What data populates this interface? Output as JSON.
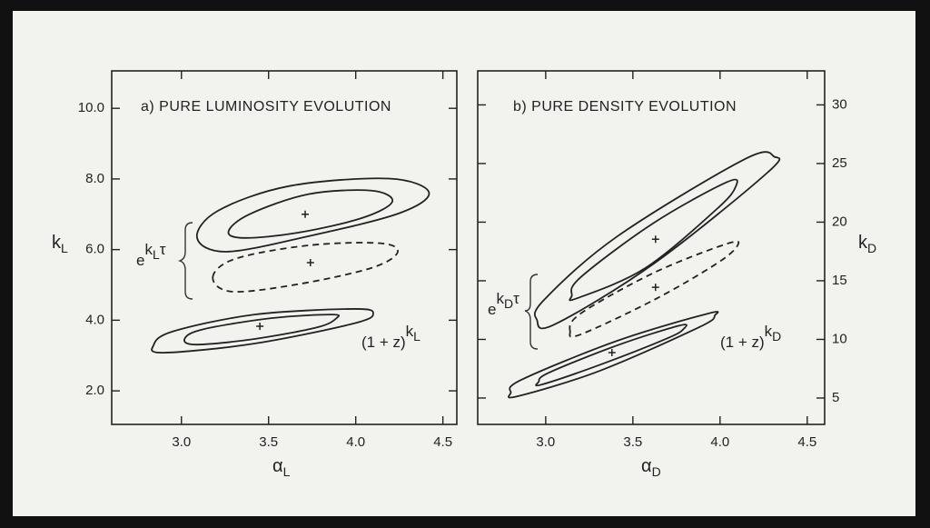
{
  "chart_data": [
    {
      "type": "contour",
      "title": "a) PURE LUMINOSITY EVOLUTION",
      "xlabel": [
        "α",
        "L"
      ],
      "ylabel": [
        "k",
        "L"
      ],
      "yaxis_side": "left",
      "xlim": [
        2.6,
        4.58
      ],
      "ylim": [
        1.05,
        11.06
      ],
      "xticks": [
        {
          "value": 3,
          "label": "3.0"
        },
        {
          "value": 3.5,
          "label": "3.5"
        },
        {
          "value": 4,
          "label": "4.0"
        },
        {
          "value": 4.5,
          "label": "4.5"
        }
      ],
      "yticks": [
        {
          "value": 2,
          "label": "2.0"
        },
        {
          "value": 4,
          "label": "4.0"
        },
        {
          "value": 6,
          "label": "6.0"
        },
        {
          "value": 8,
          "label": "8.0"
        },
        {
          "value": 10,
          "label": "10.0"
        }
      ],
      "color": "#222",
      "series": [
        {
          "style": "solid",
          "x": [
            3.09,
            3.21,
            3.62,
            4.19,
            4.42,
            4.25,
            3.73,
            3.26
          ],
          "y": [
            6.33,
            7.1,
            7.8,
            8.01,
            7.62,
            7.03,
            6.38,
            5.94
          ]
        },
        {
          "style": "solid",
          "x": [
            3.27,
            3.39,
            3.73,
            4.09,
            4.21,
            4.04,
            3.67,
            3.36
          ],
          "y": [
            6.51,
            7.0,
            7.57,
            7.67,
            7.36,
            6.9,
            6.48,
            6.33
          ]
        },
        {
          "style": "dashed",
          "x": [
            3.18,
            3.31,
            3.73,
            4.14,
            4.24,
            4.09,
            3.67,
            3.29
          ],
          "y": [
            5.22,
            5.74,
            6.12,
            6.18,
            5.92,
            5.48,
            5.02,
            4.81
          ]
        },
        {
          "style": "solid",
          "x": [
            2.84,
            2.95,
            3.42,
            3.99,
            4.1,
            3.99,
            3.42,
            2.9
          ],
          "y": [
            3.29,
            3.68,
            4.16,
            4.32,
            4.19,
            3.91,
            3.34,
            3.08
          ]
        },
        {
          "style": "solid",
          "x": [
            3.02,
            3.13,
            3.52,
            3.86,
            3.89,
            3.78,
            3.42,
            3.08
          ],
          "y": [
            3.49,
            3.75,
            4.06,
            4.16,
            4.06,
            3.8,
            3.47,
            3.31
          ]
        }
      ],
      "points": {
        "x": [
          3.71,
          3.74,
          3.45
        ],
        "y": [
          7.0,
          5.63,
          3.83
        ]
      },
      "annotations": [
        {
          "parts": [
            "e",
            "k",
            "L",
            "τ"
          ]
        },
        {
          "parts": [
            "(1 + z)",
            "k",
            "L"
          ]
        }
      ]
    },
    {
      "type": "contour",
      "title": "b) PURE DENSITY EVOLUTION",
      "xlabel": [
        "α",
        "D"
      ],
      "ylabel": [
        "k",
        "D"
      ],
      "yaxis_side": "right",
      "xlim": [
        2.61,
        4.6
      ],
      "ylim": [
        2.75,
        32.9
      ],
      "xticks": [
        {
          "value": 3,
          "label": "3.0"
        },
        {
          "value": 3.5,
          "label": "3.5"
        },
        {
          "value": 4,
          "label": "4.0"
        },
        {
          "value": 4.5,
          "label": "4.5"
        }
      ],
      "yticks": [
        5,
        10,
        15,
        20,
        25,
        30
      ],
      "color": "#222",
      "series": [
        {
          "style": "solid",
          "x": [
            2.95,
            2.99,
            3.41,
            4.14,
            4.31,
            4.27,
            3.62,
            3.05
          ],
          "y": [
            11.66,
            13.36,
            18.78,
            25.36,
            25.59,
            24.2,
            16.46,
            11.27
          ]
        },
        {
          "style": "solid",
          "x": [
            3.15,
            3.2,
            3.62,
            4.04,
            4.09,
            3.98,
            3.57,
            3.18
          ],
          "y": [
            13.75,
            15.29,
            19.94,
            23.42,
            23.03,
            21.1,
            16.07,
            13.51
          ]
        },
        {
          "style": "dashed",
          "x": [
            3.14,
            3.2,
            3.62,
            4.04,
            4.1,
            3.98,
            3.62,
            3.2
          ],
          "y": [
            10.65,
            12.2,
            15.68,
            18.16,
            18.0,
            16.46,
            13.36,
            10.42
          ]
        },
        {
          "style": "solid",
          "x": [
            2.8,
            2.86,
            3.41,
            3.93,
            3.97,
            3.88,
            3.31,
            2.84
          ],
          "y": [
            5.46,
            6.55,
            9.88,
            12.2,
            12.04,
            11.04,
            7.32,
            5.15
          ]
        },
        {
          "style": "solid",
          "x": [
            2.96,
            3.02,
            3.41,
            3.77,
            3.79,
            3.7,
            3.33,
            2.98
          ],
          "y": [
            6.39,
            7.17,
            9.49,
            11.19,
            10.88,
            10.11,
            7.94,
            6.16
          ]
        }
      ],
      "points": {
        "x": [
          3.63,
          3.63,
          3.38
        ],
        "y": [
          18.54,
          14.44,
          8.87
        ]
      },
      "annotations": [
        {
          "parts": [
            "e",
            "k",
            "D",
            "τ"
          ]
        },
        {
          "parts": [
            "(1 + z)",
            "k",
            "D"
          ]
        }
      ]
    }
  ]
}
